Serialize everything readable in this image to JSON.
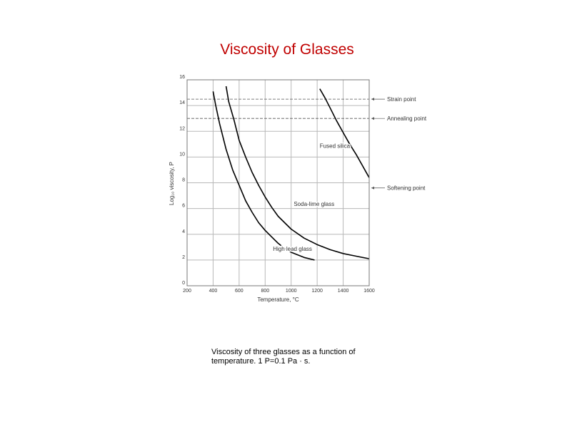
{
  "slide": {
    "title": "Viscosity of Glasses",
    "caption": "Viscosity of three glasses as a function of temperature. 1 P=0.1 Pa · s."
  },
  "chart_data": {
    "type": "line",
    "title": "",
    "xlabel": "Temperature, °C",
    "ylabel": "Log₁₀ viscosity, P",
    "xlim": [
      200,
      1600
    ],
    "ylim": [
      0,
      16
    ],
    "x_ticks": [
      200,
      400,
      600,
      800,
      1000,
      1200,
      1400,
      1600
    ],
    "x_tick_labels": [
      "200",
      "400",
      "600",
      "800",
      "1000",
      "1200",
      "1400",
      "1600"
    ],
    "y_ticks": [
      0,
      2,
      4,
      6,
      8,
      10,
      12,
      14,
      16
    ],
    "y_tick_labels": [
      "0",
      "2",
      "4",
      "6",
      "8",
      "10",
      "12",
      "14",
      "16"
    ],
    "grid": true,
    "line_color": "#000000",
    "series": [
      {
        "name": "Fused silica",
        "points": [
          [
            1220,
            15.3
          ],
          [
            1260,
            14.6
          ],
          [
            1300,
            13.8
          ],
          [
            1350,
            12.8
          ],
          [
            1400,
            11.9
          ],
          [
            1450,
            11.0
          ],
          [
            1500,
            10.2
          ],
          [
            1550,
            9.3
          ],
          [
            1600,
            8.4
          ]
        ]
      },
      {
        "name": "Soda-lime glass",
        "points": [
          [
            500,
            15.5
          ],
          [
            520,
            14.3
          ],
          [
            560,
            12.9
          ],
          [
            600,
            11.3
          ],
          [
            650,
            10.0
          ],
          [
            700,
            8.8
          ],
          [
            750,
            7.8
          ],
          [
            800,
            6.9
          ],
          [
            850,
            6.1
          ],
          [
            900,
            5.4
          ],
          [
            1000,
            4.4
          ],
          [
            1100,
            3.7
          ],
          [
            1200,
            3.2
          ],
          [
            1300,
            2.8
          ],
          [
            1400,
            2.5
          ],
          [
            1500,
            2.3
          ],
          [
            1600,
            2.1
          ]
        ]
      },
      {
        "name": "High lead glass",
        "points": [
          [
            400,
            15.1
          ],
          [
            420,
            14.0
          ],
          [
            450,
            12.6
          ],
          [
            500,
            10.6
          ],
          [
            550,
            9.0
          ],
          [
            600,
            7.8
          ],
          [
            650,
            6.6
          ],
          [
            700,
            5.7
          ],
          [
            750,
            4.9
          ],
          [
            800,
            4.3
          ],
          [
            850,
            3.8
          ],
          [
            900,
            3.3
          ],
          [
            950,
            2.9
          ],
          [
            1000,
            2.6
          ],
          [
            1100,
            2.2
          ],
          [
            1180,
            2.0
          ]
        ]
      }
    ],
    "reference_lines": [
      {
        "name": "Strain point",
        "y": 14.5
      },
      {
        "name": "Annealing point",
        "y": 13.0
      },
      {
        "name": "Softening point",
        "y": 7.6
      }
    ],
    "series_labels": [
      {
        "text": "Fused silica",
        "x": 1220,
        "y": 10.7
      },
      {
        "text": "Soda-lime glass",
        "x": 1020,
        "y": 6.2
      },
      {
        "text": "High lead glass",
        "x": 860,
        "y": 2.7
      }
    ]
  }
}
